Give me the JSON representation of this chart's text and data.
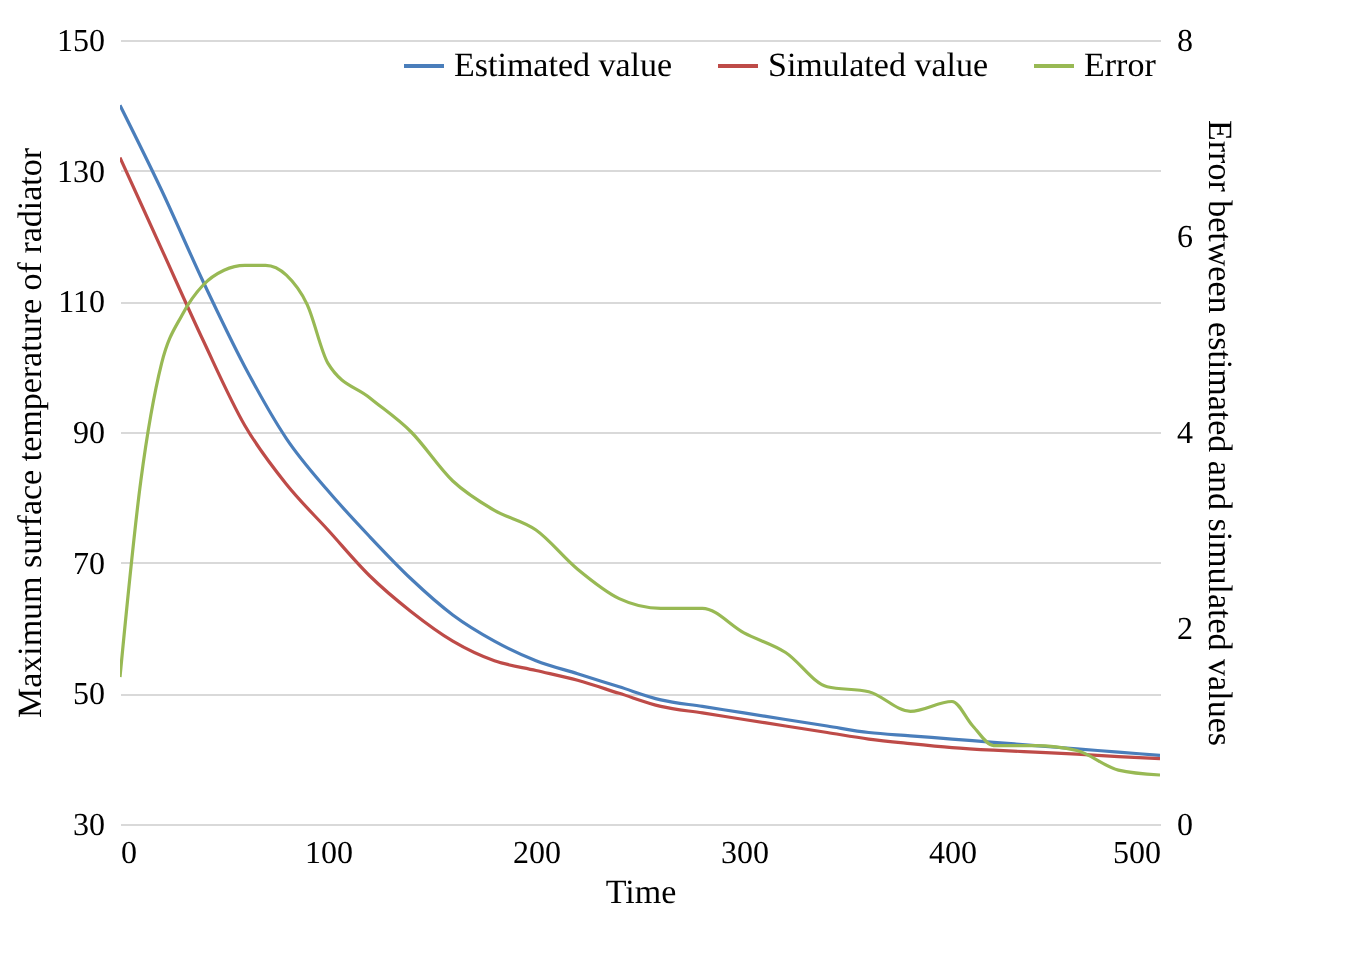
{
  "chart_data": {
    "type": "line",
    "xlabel": "Time",
    "ylabel": "Maximum surface temperature of radiator",
    "y2label": "Error between estimated and simulated values",
    "xlim": [
      0,
      500
    ],
    "xticks": [
      0,
      100,
      200,
      300,
      400,
      500
    ],
    "ylim": [
      30,
      150
    ],
    "yticks": [
      30,
      50,
      70,
      90,
      110,
      130,
      150
    ],
    "y2lim": [
      0,
      8
    ],
    "y2ticks": [
      0,
      2,
      4,
      6,
      8
    ],
    "grid": "y",
    "legend": "top right",
    "line_style": "solid",
    "marker": "none",
    "series": [
      {
        "name": "Estimated value",
        "color": "#4a7ebb",
        "x": [
          0,
          20,
          40,
          60,
          80,
          100,
          120,
          140,
          160,
          180,
          200,
          220,
          240,
          260,
          280,
          300,
          320,
          340,
          360,
          380,
          400,
          420,
          440,
          460,
          480,
          500
        ],
        "values": [
          140,
          127,
          113,
          100,
          89,
          81,
          74,
          67.5,
          62,
          58,
          55,
          53,
          51,
          49,
          48,
          47,
          46,
          45,
          44,
          43.5,
          43,
          42.5,
          42,
          41.5,
          41,
          40.5
        ]
      },
      {
        "name": "Simulated value",
        "color": "#be4b48",
        "x": [
          0,
          20,
          40,
          60,
          80,
          100,
          120,
          140,
          160,
          180,
          200,
          220,
          240,
          260,
          280,
          300,
          320,
          340,
          360,
          380,
          400,
          420,
          440,
          460,
          480,
          500
        ],
        "values": [
          132,
          118,
          104,
          91,
          82,
          75,
          68,
          62.5,
          58,
          55,
          53.5,
          52,
          50,
          48,
          47,
          46,
          45,
          44,
          43,
          42.3,
          41.7,
          41.3,
          41,
          40.7,
          40.3,
          40
        ]
      },
      {
        "name": "Error",
        "color": "#98b954",
        "axis": "y2",
        "x": [
          0,
          10,
          20,
          30,
          40,
          50,
          60,
          70,
          80,
          90,
          100,
          120,
          140,
          160,
          180,
          200,
          220,
          240,
          260,
          280,
          300,
          320,
          340,
          360,
          380,
          400,
          410,
          420,
          440,
          460,
          480,
          500
        ],
        "values": [
          1.5,
          3.5,
          4.7,
          5.2,
          5.5,
          5.65,
          5.7,
          5.7,
          5.6,
          5.3,
          4.7,
          4.35,
          4.0,
          3.5,
          3.2,
          3.0,
          2.6,
          2.3,
          2.2,
          2.2,
          1.95,
          1.75,
          1.4,
          1.35,
          1.15,
          1.25,
          1.0,
          0.8,
          0.8,
          0.75,
          0.55,
          0.5
        ]
      }
    ]
  }
}
